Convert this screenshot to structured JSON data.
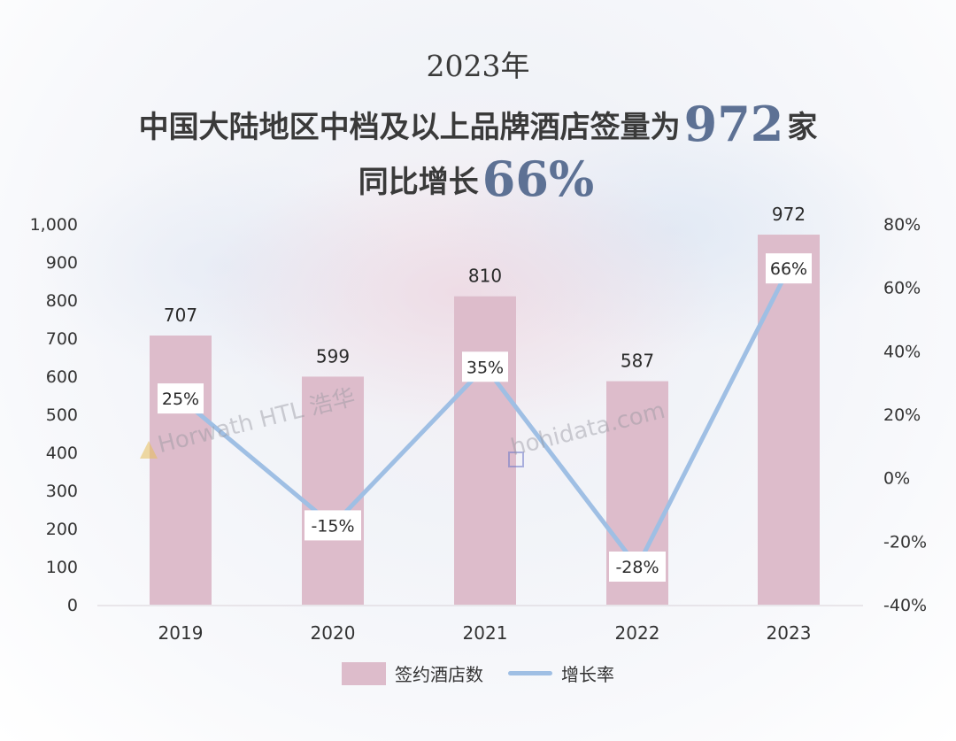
{
  "header": {
    "line1": "2023年",
    "line2_prefix": "中国大陆地区中档及以上品牌酒店签量为",
    "line2_value": "972",
    "line2_suffix": "家",
    "line3_prefix": "同比增长",
    "line3_value": "66%"
  },
  "watermarks": {
    "left": "Horwath HTL 浩华",
    "right": "hohidata.com"
  },
  "legend": {
    "bar_label": "签约酒店数",
    "line_label": "增长率"
  },
  "colors": {
    "bar": "#ddbccb",
    "line": "#9fbfe4",
    "label_text": "#2a2a2a",
    "axis_text": "#333333",
    "accent": "#5d7194"
  },
  "chart_data": {
    "type": "bar+line",
    "categories": [
      "2019",
      "2020",
      "2021",
      "2022",
      "2023"
    ],
    "series": [
      {
        "name": "签约酒店数",
        "type": "bar",
        "axis": "left",
        "values": [
          707,
          599,
          810,
          587,
          972
        ],
        "labels": [
          "707",
          "599",
          "810",
          "587",
          "972"
        ]
      },
      {
        "name": "增长率",
        "type": "line",
        "axis": "right",
        "values": [
          25,
          -15,
          35,
          -28,
          66
        ],
        "labels": [
          "25%",
          "-15%",
          "35%",
          "-28%",
          "66%"
        ]
      }
    ],
    "y_left": {
      "min": 0,
      "max": 1000,
      "ticks": [
        0,
        100,
        200,
        300,
        400,
        500,
        600,
        700,
        800,
        900,
        1000
      ],
      "tick_labels": [
        "0",
        "100",
        "200",
        "300",
        "400",
        "500",
        "600",
        "700",
        "800",
        "900",
        "1,000"
      ]
    },
    "y_right": {
      "min": -40,
      "max": 80,
      "ticks": [
        -40,
        -20,
        0,
        20,
        40,
        60,
        80
      ],
      "tick_labels": [
        "-40%",
        "-20%",
        "0%",
        "20%",
        "40%",
        "60%",
        "80%"
      ]
    },
    "grid": false,
    "legend_position": "bottom"
  }
}
